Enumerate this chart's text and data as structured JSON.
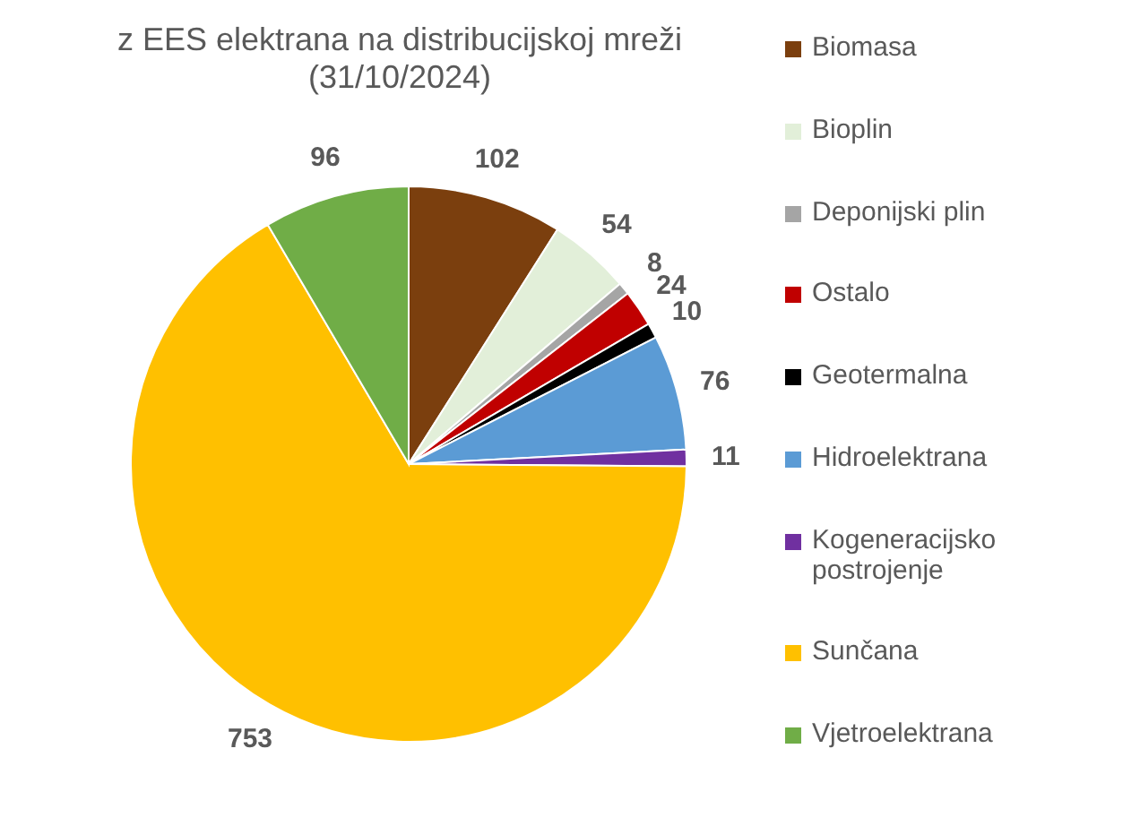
{
  "chart_data": {
    "type": "pie",
    "title": "z EES elektrana na distribucijskoj mreži (31/10/2024)",
    "categories": [
      "Biomasa",
      "Bioplin",
      "Deponijski plin",
      "Ostalo",
      "Geotermalna",
      "Hidroelektrana",
      "Kogeneracijsko postrojenje",
      "Sunčana",
      "Vjetroelektrana"
    ],
    "values": [
      102,
      54,
      8,
      24,
      10,
      76,
      11,
      753,
      96
    ],
    "colors": [
      "#7b3f0e",
      "#e2efd9",
      "#a5a5a5",
      "#c00000",
      "#000000",
      "#5b9bd5",
      "#7030a0",
      "#ffc000",
      "#70ad47"
    ],
    "data_labels": true,
    "legend": "right"
  }
}
